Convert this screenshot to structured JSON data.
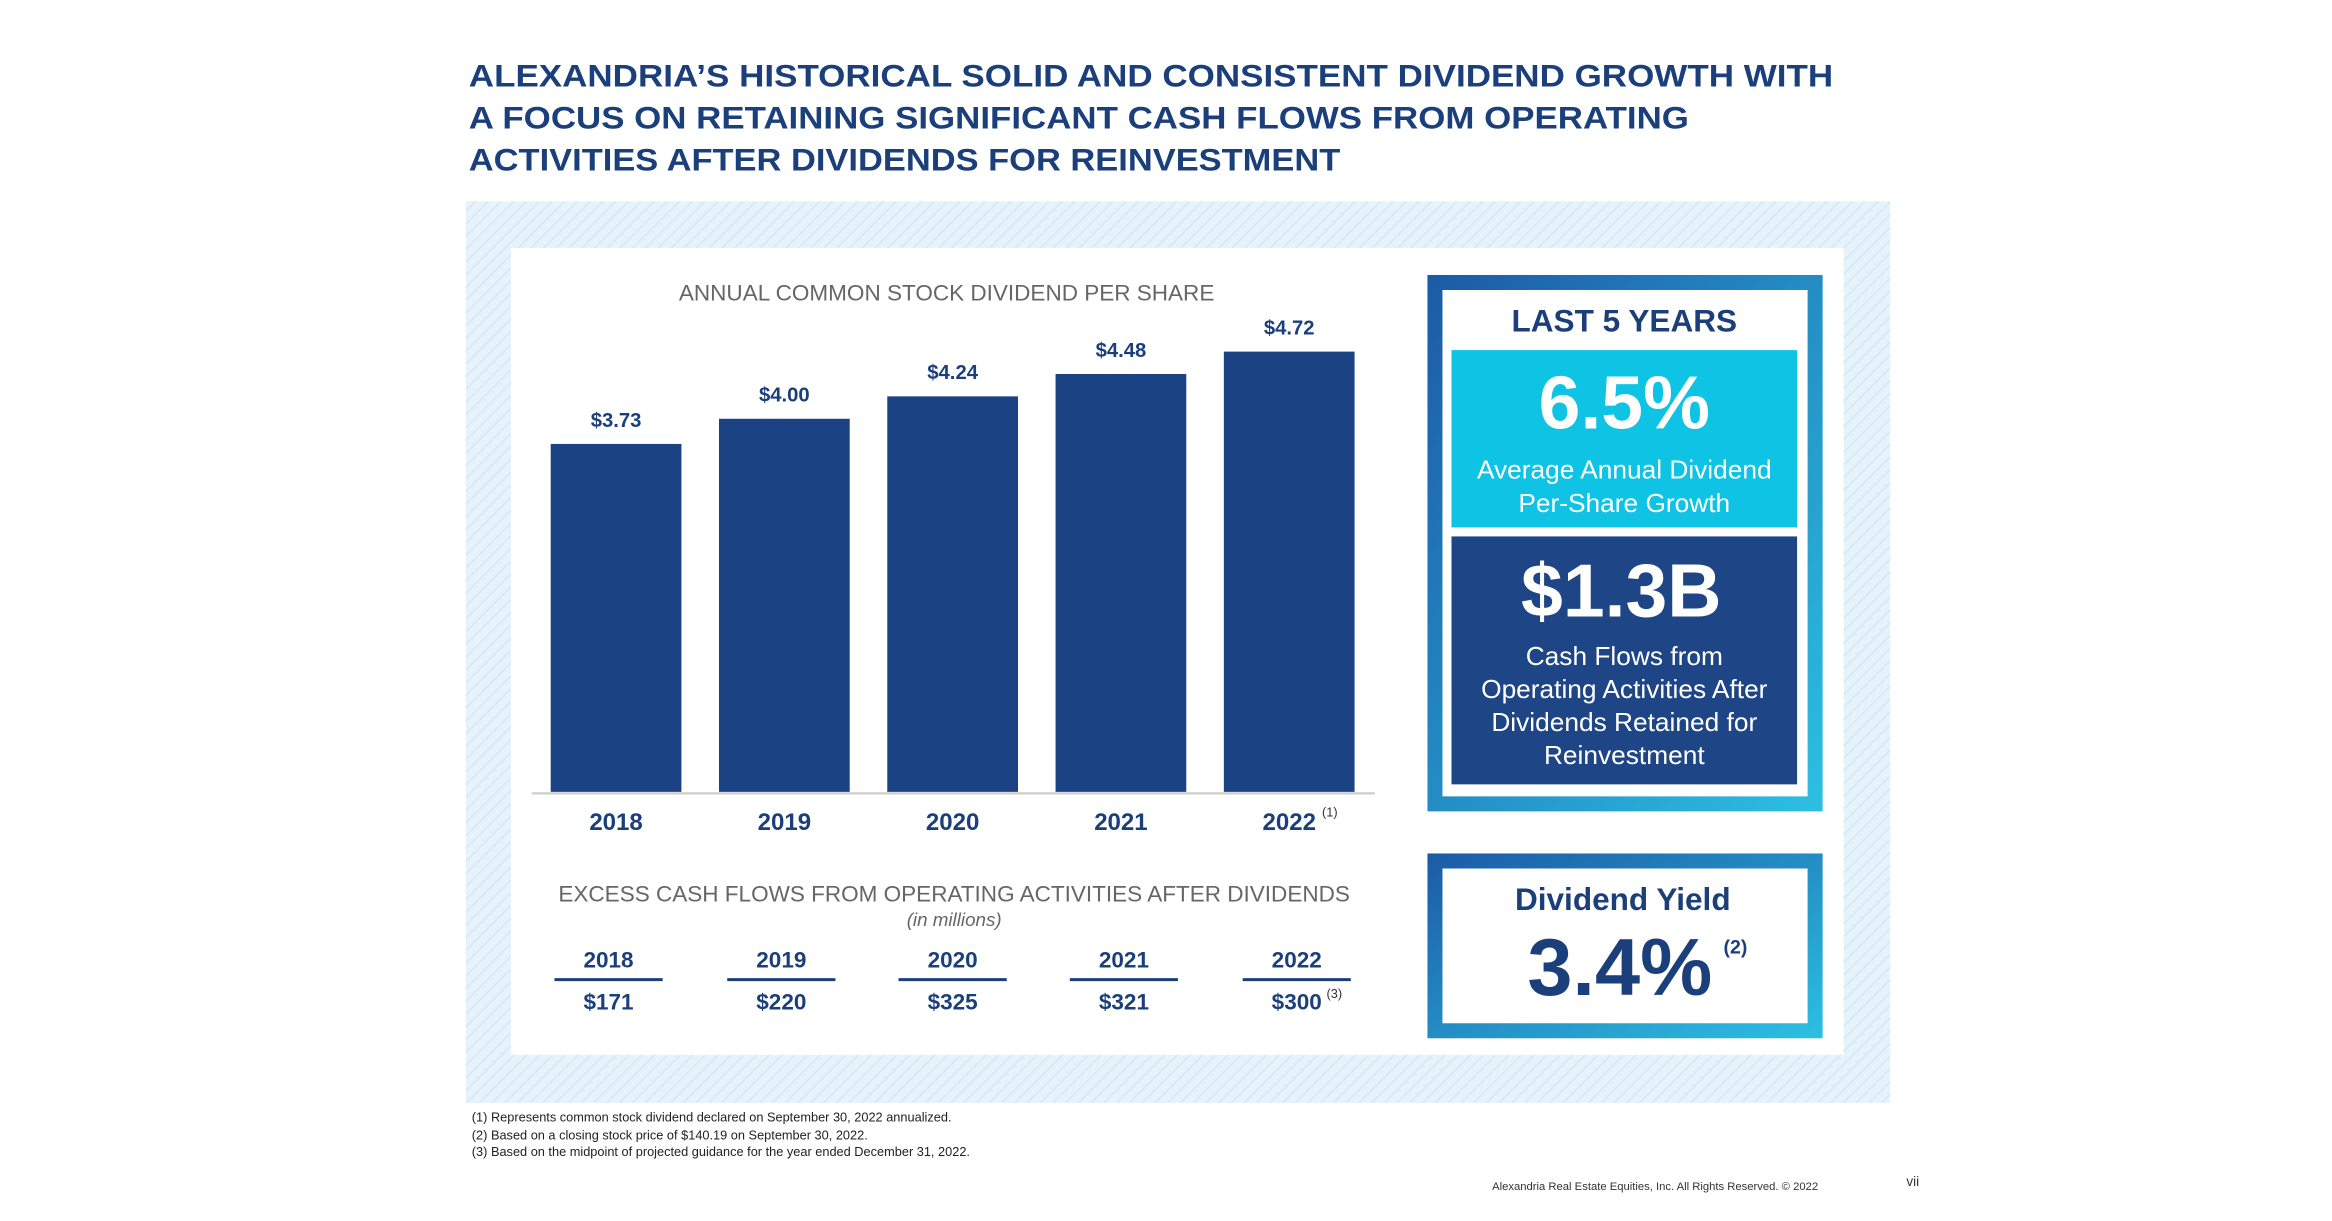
{
  "header": {
    "title_lines": [
      "ALEXANDRIA’S HISTORICAL SOLID AND CONSISTENT DIVIDEND GROWTH WITH",
      "A FOCUS ON RETAINING SIGNIFICANT CASH FLOWS FROM OPERATING",
      "ACTIVITIES AFTER DIVIDENDS FOR REINVESTMENT"
    ]
  },
  "chart_data": {
    "type": "bar",
    "title": "ANNUAL COMMON STOCK DIVIDEND PER SHARE",
    "categories": [
      "2018",
      "2019",
      "2020",
      "2021",
      "2022"
    ],
    "category_notes": [
      null,
      null,
      null,
      null,
      "(1)"
    ],
    "values": [
      3.73,
      4.0,
      4.24,
      4.48,
      4.72
    ],
    "value_labels": [
      "$3.73",
      "$4.00",
      "$4.24",
      "$4.48",
      "$4.72"
    ],
    "color": "#1b4384"
  },
  "table": {
    "title": "EXCESS CASH FLOWS FROM OPERATING ACTIVITIES AFTER DIVIDENDS",
    "subtitle": "(in millions)",
    "years": [
      "2018",
      "2019",
      "2020",
      "2021",
      "2022"
    ],
    "values": [
      "$171",
      "$220",
      "$325",
      "$321",
      "$300"
    ],
    "value_notes": [
      null,
      null,
      null,
      null,
      "(3)"
    ]
  },
  "callouts": {
    "period": "LAST 5 YEARS",
    "growth": {
      "value": "6.5%",
      "lines": [
        "Average Annual Dividend",
        "Per-Share Growth"
      ]
    },
    "cash": {
      "value": "$1.3B",
      "lines": [
        "Cash Flows from",
        "Operating Activities After",
        "Dividends Retained for",
        "Reinvestment"
      ]
    },
    "yield": {
      "title": "Dividend Yield",
      "value": "3.4%",
      "note": "(2)"
    }
  },
  "footnotes": [
    "(1)   Represents common stock dividend declared on September 30, 2022 annualized.",
    "(2)   Based on a closing stock price of $140.19 on September 30, 2022.",
    "(3)   Based on the midpoint of projected guidance for the year ended December 31, 2022."
  ],
  "footer": {
    "copyright": "Alexandria Real Estate Equities, Inc. All Rights Reserved. © 2022",
    "page": "vii"
  }
}
